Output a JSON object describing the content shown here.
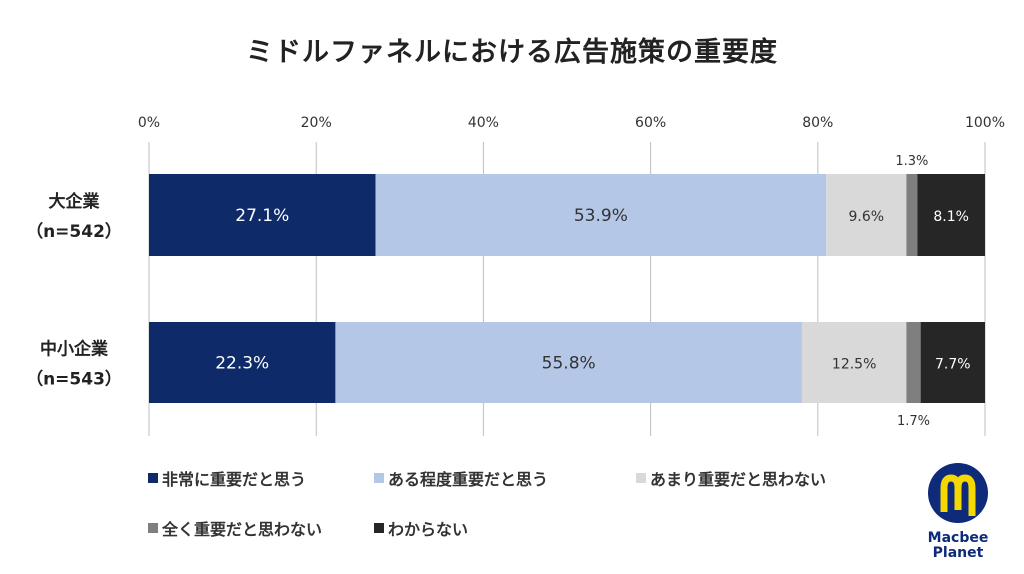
{
  "chart_data": {
    "type": "bar",
    "orientation": "horizontal",
    "stacked": true,
    "title": "ミドルファネルにおける広告施策の重要度",
    "categories": [
      "大企業\n（n=542）",
      "中小企業\n（n=543）"
    ],
    "category_lines": [
      [
        "大企業",
        "（n=542）"
      ],
      [
        "中小企業",
        "（n=543）"
      ]
    ],
    "xlim": [
      0,
      100
    ],
    "xticks": [
      "0%",
      "20%",
      "40%",
      "60%",
      "80%",
      "100%"
    ],
    "grid": true,
    "legend_position": "bottom",
    "series": [
      {
        "name": "非常に重要だと思う",
        "values": [
          27.1,
          22.3
        ],
        "color": "#0e2a68",
        "label_color": "#ffffff"
      },
      {
        "name": "ある程度重要だと思う",
        "values": [
          53.9,
          55.8
        ],
        "color": "#b4c7e7",
        "label_color": "#333333"
      },
      {
        "name": "あまり重要だと思わない",
        "values": [
          9.6,
          12.5
        ],
        "color": "#d9d9d9",
        "label_color": "#333333"
      },
      {
        "name": "全く重要だと思わない",
        "values": [
          1.3,
          1.7
        ],
        "color": "#7f7f7f",
        "label_color": "#333333"
      },
      {
        "name": "わからない",
        "values": [
          8.1,
          7.7
        ],
        "color": "#262626",
        "label_color": "#ffffff"
      }
    ]
  },
  "logo": {
    "text": "Macbee Planet",
    "line1": "Macbee",
    "line2": "Planet",
    "colors": {
      "navy": "#0e2a7a",
      "yellow": "#f5d800"
    }
  }
}
